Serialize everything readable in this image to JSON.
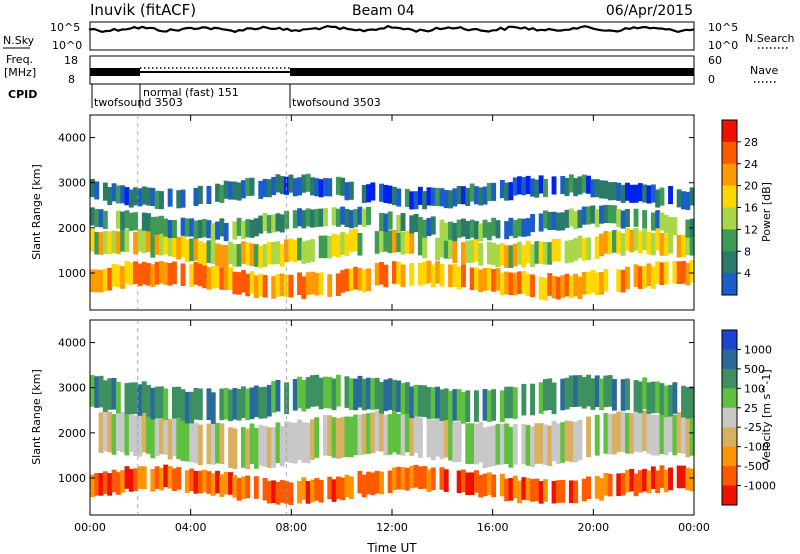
{
  "header": {
    "station": "Inuvik (fitACF)",
    "beam": "Beam 04",
    "date": "06/Apr/2015"
  },
  "noise_panel": {
    "left_label": "N.Sky",
    "right_label": "N.Search",
    "ticks": [
      "10^5",
      "10^0"
    ]
  },
  "freq_panel": {
    "left_label_1": "Freq.",
    "left_label_2": "[MHz]",
    "right_label": "Nave",
    "left_ticks": [
      "18",
      "8"
    ],
    "right_ticks": [
      "60",
      "0"
    ]
  },
  "cpid": {
    "label": "CPID",
    "segments": [
      {
        "name": "twofsound 3503",
        "start_hr": 0,
        "end_hr": 1.9
      },
      {
        "name": "normal (fast) 151",
        "start_hr": 1.9,
        "end_hr": 7.8
      },
      {
        "name": "twofsound 3503",
        "start_hr": 7.8,
        "end_hr": 24
      }
    ]
  },
  "colors": {
    "power": [
      "#0022ee",
      "#1b5ec9",
      "#2a7a6a",
      "#3f9a55",
      "#a8d84a",
      "#ffd800",
      "#ff9a00",
      "#ff5a00",
      "#ee1100"
    ],
    "velocity": [
      "#ee1100",
      "#ff5a00",
      "#ff9400",
      "#d8b060",
      "#c8c8c8",
      "#5fc040",
      "#3e9060",
      "#2a6a9a",
      "#1c44cc"
    ]
  },
  "chart_data": [
    {
      "type": "heatmap",
      "panel": "power",
      "ylabel": "Slant Range [km]",
      "ylim": [
        180,
        4500
      ],
      "y_ticks": [
        1000,
        2000,
        3000,
        4000
      ],
      "x_ticks": [
        "00:00",
        "04:00",
        "08:00",
        "12:00",
        "16:00",
        "20:00",
        "00:00"
      ],
      "xlim_hours": [
        0,
        24
      ],
      "colorbar": {
        "label": "Power [dB]",
        "ticks": [
          "4",
          "8",
          "12",
          "16",
          "20",
          "24",
          "28"
        ]
      },
      "bands": [
        {
          "range_km": [
            600,
            1100
          ],
          "value": 24
        },
        {
          "range_km": [
            1300,
            1800
          ],
          "value": 18
        },
        {
          "range_km": [
            1900,
            2300
          ],
          "value": 10
        },
        {
          "range_km": [
            2600,
            3000
          ],
          "value": 6
        }
      ]
    },
    {
      "type": "heatmap",
      "panel": "velocity",
      "ylabel": "Slant Range [km]",
      "xlabel": "Time UT",
      "ylim": [
        180,
        4500
      ],
      "y_ticks": [
        1000,
        2000,
        3000,
        4000
      ],
      "x_ticks": [
        "00:00",
        "04:00",
        "08:00",
        "12:00",
        "16:00",
        "20:00",
        "00:00"
      ],
      "xlim_hours": [
        0,
        24
      ],
      "colorbar": {
        "label": "Velocity [m s^-1]",
        "ticks": [
          "1000",
          "500",
          "100",
          "25",
          "-25",
          "-100",
          "-500",
          "-1000"
        ]
      },
      "bands": [
        {
          "range_km": [
            600,
            1100
          ],
          "value": -200
        },
        {
          "range_km": [
            1400,
            2300
          ],
          "value": 0
        },
        {
          "range_km": [
            2400,
            3100
          ],
          "value": 60
        }
      ]
    }
  ]
}
